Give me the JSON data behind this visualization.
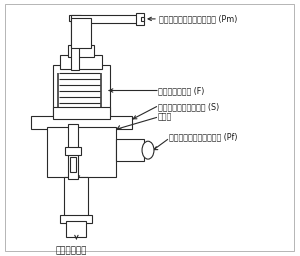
{
  "bg_color": "#ffffff",
  "line_color": "#2a2a2a",
  "line_width": 0.8,
  "labels": {
    "intake": "インテークマニホールド圧 (Pm)",
    "spring": "スプリング荷重 (F)",
    "diaphragm": "ダイアフラム有効面積 (S)",
    "valve": "バルブ",
    "delivery": "デリバリーパイプ内燃圧 (Pf)",
    "tank": "燃料タンクへ"
  },
  "font_size": 5.8,
  "label_color": "#1a1a1a",
  "font_family": "Noto Sans CJK JP",
  "font_family_fallback": "DejaVu Sans"
}
